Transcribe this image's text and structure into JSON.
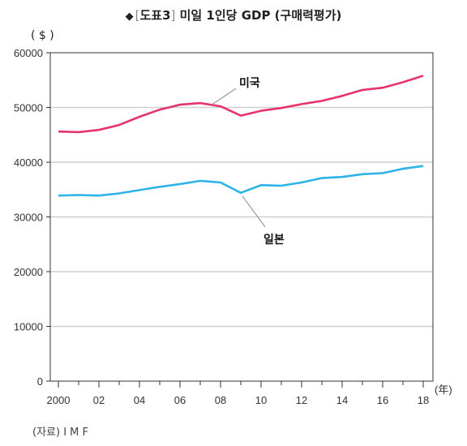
{
  "header": {
    "title_prefix": "◆",
    "bracket_open": "[",
    "figure_no": "도표3",
    "bracket_close": "]",
    "title": "미일 1인당 GDP (구매력평가)"
  },
  "unit_label": "( $ )",
  "year_unit": "(年)",
  "source": "(자료) I M F",
  "colors": {
    "usa": "#e6336b",
    "japan": "#2cb3e8",
    "grid": "#cfcfcf",
    "axis": "#333333"
  },
  "chart_data": {
    "type": "line",
    "title": "미일 1인당 GDP (구매력평가)",
    "ylabel": "$",
    "xlabel": "年",
    "ylim": [
      0,
      60000
    ],
    "xlim": [
      2000,
      2018
    ],
    "x": [
      2000,
      2001,
      2002,
      2003,
      2004,
      2005,
      2006,
      2007,
      2008,
      2009,
      2010,
      2011,
      2012,
      2013,
      2014,
      2015,
      2016,
      2017,
      2018
    ],
    "x_tick_values": [
      2000,
      2002,
      2004,
      2006,
      2008,
      2010,
      2012,
      2014,
      2016,
      2018
    ],
    "x_tick_labels": [
      "2000",
      "02",
      "04",
      "06",
      "08",
      "10",
      "12",
      "14",
      "16",
      "18"
    ],
    "y_ticks": [
      0,
      10000,
      20000,
      30000,
      40000,
      50000,
      60000
    ],
    "y_tick_labels": [
      "0",
      "10000",
      "20000",
      "30000",
      "40000",
      "50000",
      "60000"
    ],
    "grid": true,
    "series": [
      {
        "name": "미국",
        "color": "#e6336b",
        "values": [
          45600,
          45500,
          45900,
          46800,
          48300,
          49600,
          50500,
          50800,
          50200,
          48500,
          49400,
          49900,
          50600,
          51200,
          52100,
          53200,
          53600,
          54600,
          55800
        ]
      },
      {
        "name": "일본",
        "color": "#2cb3e8",
        "values": [
          33900,
          34000,
          33900,
          34300,
          34900,
          35500,
          36000,
          36600,
          36300,
          34400,
          35800,
          35700,
          36300,
          37100,
          37300,
          37800,
          38000,
          38800,
          39300
        ]
      }
    ]
  }
}
